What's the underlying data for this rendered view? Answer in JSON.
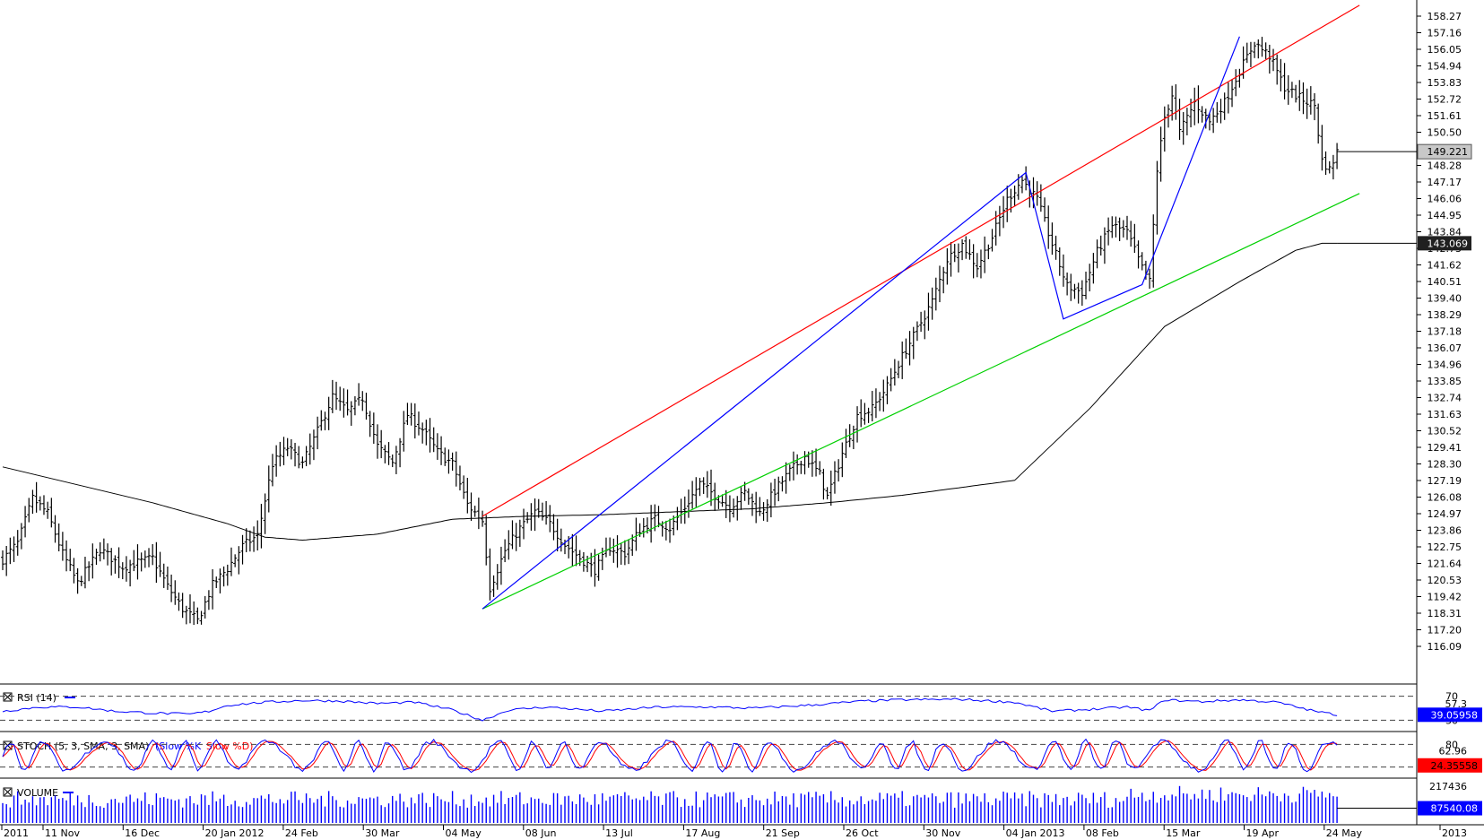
{
  "chart_data": [
    {
      "type": "ohlc",
      "panel": "price",
      "price_ticks": [
        "158.27",
        "157.16",
        "156.05",
        "154.94",
        "153.83",
        "152.72",
        "151.61",
        "150.50",
        "149.39",
        "148.28",
        "147.17",
        "146.06",
        "144.95",
        "143.84",
        "142.73",
        "141.62",
        "140.51",
        "139.40",
        "138.29",
        "137.18",
        "136.07",
        "134.96",
        "133.85",
        "132.74",
        "131.63",
        "130.52",
        "129.41",
        "128.30",
        "127.19",
        "126.08",
        "124.97",
        "123.86",
        "122.75",
        "121.64",
        "120.53",
        "119.42",
        "118.31",
        "117.20",
        "116.09"
      ],
      "ylim": [
        116.09,
        158.27
      ],
      "last_price_label": "149.221",
      "ma_label": "143.069",
      "date_labels": [
        "2011",
        "11 Nov",
        "16 Dec",
        "20 Jan 2012",
        "24 Feb",
        "30 Mar",
        "04 May",
        "08 Jun",
        "13 Jul",
        "17 Aug",
        "21 Sep",
        "26 Oct",
        "30 Nov",
        "04 Jan 2013",
        "08 Feb",
        "15 Mar",
        "19 Apr",
        "24 May",
        "2013"
      ],
      "price_anchors": [
        [
          0,
          121.9
        ],
        [
          4,
          123.0
        ],
        [
          8,
          126.0
        ],
        [
          12,
          125.0
        ],
        [
          16,
          122.3
        ],
        [
          20,
          120.3
        ],
        [
          26,
          122.6
        ],
        [
          32,
          121.4
        ],
        [
          40,
          122.0
        ],
        [
          44,
          120.1
        ],
        [
          48,
          118.6
        ],
        [
          52,
          117.8
        ],
        [
          56,
          120.2
        ],
        [
          60,
          121.3
        ],
        [
          64,
          122.8
        ],
        [
          68,
          123.5
        ],
        [
          72,
          128.3
        ],
        [
          76,
          129.4
        ],
        [
          80,
          128.3
        ],
        [
          84,
          130.5
        ],
        [
          88,
          132.8
        ],
        [
          92,
          131.8
        ],
        [
          96,
          132.7
        ],
        [
          100,
          129.5
        ],
        [
          104,
          128.4
        ],
        [
          108,
          131.6
        ],
        [
          112,
          130.6
        ],
        [
          116,
          129.1
        ],
        [
          120,
          128.3
        ],
        [
          124,
          125.6
        ],
        [
          128,
          124.5
        ],
        [
          130,
          120.0
        ],
        [
          134,
          122.5
        ],
        [
          138,
          124.0
        ],
        [
          142,
          125.1
        ],
        [
          146,
          124.3
        ],
        [
          150,
          122.9
        ],
        [
          154,
          122.0
        ],
        [
          158,
          121.2
        ],
        [
          162,
          122.7
        ],
        [
          166,
          122.3
        ],
        [
          170,
          123.9
        ],
        [
          174,
          124.6
        ],
        [
          178,
          124.0
        ],
        [
          182,
          125.4
        ],
        [
          186,
          127.0
        ],
        [
          190,
          126.2
        ],
        [
          194,
          125.4
        ],
        [
          198,
          126.4
        ],
        [
          202,
          125.0
        ],
        [
          206,
          126.5
        ],
        [
          210,
          127.8
        ],
        [
          214,
          128.8
        ],
        [
          218,
          127.6
        ],
        [
          220,
          126.1
        ],
        [
          224,
          129.0
        ],
        [
          228,
          131.5
        ],
        [
          232,
          132.0
        ],
        [
          236,
          133.5
        ],
        [
          240,
          135.5
        ],
        [
          244,
          137.3
        ],
        [
          248,
          139.2
        ],
        [
          252,
          142.0
        ],
        [
          256,
          143.0
        ],
        [
          260,
          141.5
        ],
        [
          264,
          143.5
        ],
        [
          268,
          146.0
        ],
        [
          272,
          147.3
        ],
        [
          276,
          146.0
        ],
        [
          280,
          143.0
        ],
        [
          284,
          140.2
        ],
        [
          288,
          139.8
        ],
        [
          292,
          142.5
        ],
        [
          296,
          144.3
        ],
        [
          300,
          143.8
        ],
        [
          304,
          141.4
        ],
        [
          306,
          140.5
        ],
        [
          308,
          148.0
        ],
        [
          310,
          151.5
        ],
        [
          312,
          153.0
        ],
        [
          314,
          150.5
        ],
        [
          318,
          152.5
        ],
        [
          322,
          151.2
        ],
        [
          326,
          152.5
        ],
        [
          330,
          154.6
        ],
        [
          334,
          156.5
        ],
        [
          338,
          155.6
        ],
        [
          342,
          153.5
        ],
        [
          346,
          152.8
        ],
        [
          350,
          152.3
        ],
        [
          352,
          148.6
        ],
        [
          354,
          148.0
        ],
        [
          356,
          149.2
        ]
      ],
      "ma_anchors": [
        [
          0,
          128.1
        ],
        [
          20,
          126.9
        ],
        [
          40,
          125.7
        ],
        [
          60,
          124.3
        ],
        [
          70,
          123.4
        ],
        [
          80,
          123.2
        ],
        [
          100,
          123.6
        ],
        [
          120,
          124.6
        ],
        [
          140,
          124.8
        ],
        [
          160,
          124.9
        ],
        [
          200,
          125.3
        ],
        [
          220,
          125.7
        ],
        [
          240,
          126.2
        ],
        [
          270,
          127.2
        ],
        [
          290,
          132.0
        ],
        [
          310,
          137.5
        ],
        [
          330,
          140.5
        ],
        [
          345,
          142.6
        ],
        [
          352,
          143.069
        ],
        [
          356,
          143.069
        ]
      ],
      "trendlines": [
        {
          "color": "#ff0000",
          "from": [
            128,
            124.8
          ],
          "to": [
            362,
            159.0
          ]
        },
        {
          "color": "#00d000",
          "from": [
            128,
            118.6
          ],
          "to": [
            362,
            146.4
          ]
        },
        {
          "color": "#0000ff",
          "points": [
            [
              128,
              118.6
            ],
            [
              273,
              147.8
            ],
            [
              283,
              138.0
            ],
            [
              304,
              140.3
            ],
            [
              330,
              156.9
            ]
          ]
        }
      ]
    },
    {
      "type": "line",
      "panel": "rsi",
      "title": "RSI (14)",
      "levels": [
        "70",
        "30"
      ],
      "ylim": [
        20,
        80
      ],
      "value_label": "39.05958",
      "axis_label": "57.3",
      "series": [
        {
          "color": "#0000ff",
          "anchors": [
            [
              0,
              45
            ],
            [
              10,
              52
            ],
            [
              20,
              52
            ],
            [
              30,
              45
            ],
            [
              40,
              42
            ],
            [
              50,
              40
            ],
            [
              55,
              45
            ],
            [
              60,
              55
            ],
            [
              70,
              60
            ],
            [
              80,
              63
            ],
            [
              90,
              62
            ],
            [
              100,
              58
            ],
            [
              110,
              60
            ],
            [
              120,
              47
            ],
            [
              128,
              30
            ],
            [
              135,
              47
            ],
            [
              145,
              52
            ],
            [
              160,
              45
            ],
            [
              175,
              52
            ],
            [
              190,
              52
            ],
            [
              200,
              50
            ],
            [
              215,
              55
            ],
            [
              230,
              62
            ],
            [
              240,
              64
            ],
            [
              255,
              65
            ],
            [
              270,
              60
            ],
            [
              280,
              45
            ],
            [
              290,
              48
            ],
            [
              300,
              52
            ],
            [
              306,
              46
            ],
            [
              310,
              64
            ],
            [
              320,
              61
            ],
            [
              330,
              64
            ],
            [
              340,
              60
            ],
            [
              350,
              45
            ],
            [
              356,
              39
            ]
          ]
        }
      ]
    },
    {
      "type": "line",
      "panel": "stoch",
      "title": "STOCH (5, 3, SMA, 3, SMA)",
      "legend": [
        {
          "label": "(Slow %K",
          "color": "#0000ff"
        },
        {
          "label": "Slow %D)",
          "color": "#ff0000"
        }
      ],
      "levels": [
        "80",
        "20"
      ],
      "ylim": [
        0,
        100
      ],
      "value_label": "24.35558",
      "axis_label": "62.96",
      "series": [
        {
          "name": "(Slow %K",
          "color": "#0000ff"
        },
        {
          "name": "Slow %D)",
          "color": "#ff0000"
        }
      ]
    },
    {
      "type": "bar",
      "panel": "volume",
      "title": "VOLUME",
      "axis_label": "217436",
      "value_label": "87540.08",
      "ylim": [
        0,
        250000
      ],
      "series": [
        {
          "color": "#0000ff"
        }
      ]
    }
  ]
}
